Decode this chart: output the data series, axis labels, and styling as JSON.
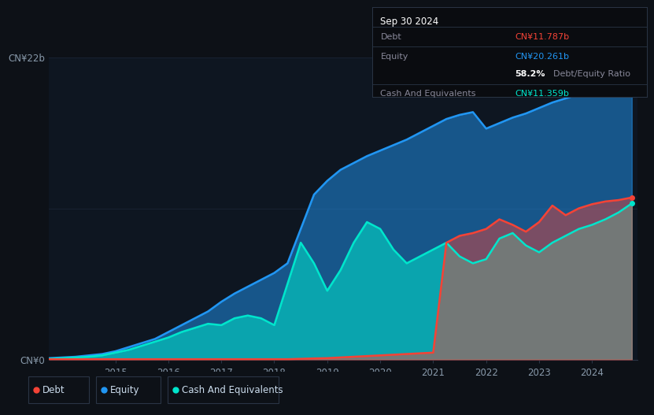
{
  "background_color": "#0d1117",
  "plot_bg_color": "#0e1621",
  "grid_color": "#1a2535",
  "equity_color": "#2196f3",
  "debt_color": "#f44336",
  "cash_color": "#00e5cc",
  "legend_items": [
    "Debt",
    "Equity",
    "Cash And Equivalents"
  ],
  "legend_colors": [
    "#f44336",
    "#2196f3",
    "#00e5cc"
  ],
  "ylabel_top": "CN¥22b",
  "ylabel_bottom": "CN¥0",
  "info_box": {
    "date": "Sep 30 2024",
    "debt_label": "Debt",
    "debt_value": "CN¥11.787b",
    "debt_color": "#f44336",
    "equity_label": "Equity",
    "equity_value": "CN¥20.261b",
    "equity_color": "#2196f3",
    "ratio_bold": "58.2%",
    "ratio_text": "Debt/Equity Ratio",
    "cash_label": "Cash And Equivalents",
    "cash_value": "CN¥11.359b",
    "cash_color": "#00e5cc"
  },
  "equity_x": [
    2013.75,
    2014.0,
    2014.25,
    2014.5,
    2014.75,
    2015.0,
    2015.25,
    2015.5,
    2015.75,
    2016.0,
    2016.25,
    2016.5,
    2016.75,
    2017.0,
    2017.25,
    2017.5,
    2017.75,
    2018.0,
    2018.25,
    2018.5,
    2018.75,
    2019.0,
    2019.25,
    2019.5,
    2019.75,
    2020.0,
    2020.25,
    2020.5,
    2020.75,
    2021.0,
    2021.25,
    2021.5,
    2021.75,
    2022.0,
    2022.25,
    2022.5,
    2022.75,
    2023.0,
    2023.25,
    2023.5,
    2023.75,
    2024.0,
    2024.25,
    2024.5,
    2024.75
  ],
  "equity_y": [
    0.1,
    0.15,
    0.2,
    0.3,
    0.4,
    0.6,
    0.9,
    1.2,
    1.5,
    2.0,
    2.5,
    3.0,
    3.5,
    4.2,
    4.8,
    5.3,
    5.8,
    6.3,
    7.0,
    9.5,
    12.0,
    13.0,
    13.8,
    14.3,
    14.8,
    15.2,
    15.6,
    16.0,
    16.5,
    17.0,
    17.5,
    17.8,
    18.0,
    16.8,
    17.2,
    17.6,
    17.9,
    18.3,
    18.7,
    19.0,
    19.3,
    19.6,
    19.9,
    20.1,
    20.261
  ],
  "debt_x": [
    2013.75,
    2014.0,
    2014.25,
    2014.5,
    2014.75,
    2015.0,
    2015.25,
    2015.5,
    2015.75,
    2016.0,
    2016.25,
    2016.5,
    2016.75,
    2017.0,
    2017.25,
    2017.5,
    2017.75,
    2018.0,
    2018.25,
    2018.5,
    2018.75,
    2019.0,
    2019.25,
    2019.5,
    2019.75,
    2020.0,
    2020.25,
    2020.5,
    2020.75,
    2021.0,
    2021.25,
    2021.5,
    2021.75,
    2022.0,
    2022.25,
    2022.5,
    2022.75,
    2023.0,
    2023.25,
    2023.5,
    2023.75,
    2024.0,
    2024.25,
    2024.5,
    2024.75
  ],
  "debt_y": [
    0.02,
    0.02,
    0.02,
    0.02,
    0.02,
    0.02,
    0.02,
    0.02,
    0.02,
    0.02,
    0.02,
    0.02,
    0.02,
    0.02,
    0.02,
    0.02,
    0.02,
    0.02,
    0.02,
    0.05,
    0.08,
    0.1,
    0.15,
    0.2,
    0.25,
    0.3,
    0.35,
    0.4,
    0.45,
    0.5,
    8.5,
    9.0,
    9.2,
    9.5,
    10.2,
    9.8,
    9.3,
    10.0,
    11.2,
    10.5,
    11.0,
    11.3,
    11.5,
    11.6,
    11.787
  ],
  "cash_x": [
    2013.75,
    2014.0,
    2014.25,
    2014.5,
    2014.75,
    2015.0,
    2015.25,
    2015.5,
    2015.75,
    2016.0,
    2016.25,
    2016.5,
    2016.75,
    2017.0,
    2017.25,
    2017.5,
    2017.75,
    2018.0,
    2018.25,
    2018.5,
    2018.75,
    2019.0,
    2019.25,
    2019.5,
    2019.75,
    2020.0,
    2020.25,
    2020.5,
    2020.75,
    2021.0,
    2021.25,
    2021.5,
    2021.75,
    2022.0,
    2022.25,
    2022.5,
    2022.75,
    2023.0,
    2023.25,
    2023.5,
    2023.75,
    2024.0,
    2024.25,
    2024.5,
    2024.75
  ],
  "cash_y": [
    0.05,
    0.1,
    0.15,
    0.2,
    0.3,
    0.5,
    0.7,
    1.0,
    1.3,
    1.6,
    2.0,
    2.3,
    2.6,
    2.5,
    3.0,
    3.2,
    3.0,
    2.5,
    5.5,
    8.5,
    7.0,
    5.0,
    6.5,
    8.5,
    10.0,
    9.5,
    8.0,
    7.0,
    7.5,
    8.0,
    8.5,
    7.5,
    7.0,
    7.3,
    8.8,
    9.2,
    8.3,
    7.8,
    8.5,
    9.0,
    9.5,
    9.8,
    10.2,
    10.7,
    11.359
  ],
  "ylim": [
    0,
    22
  ],
  "xlim": [
    2013.75,
    2024.85
  ]
}
